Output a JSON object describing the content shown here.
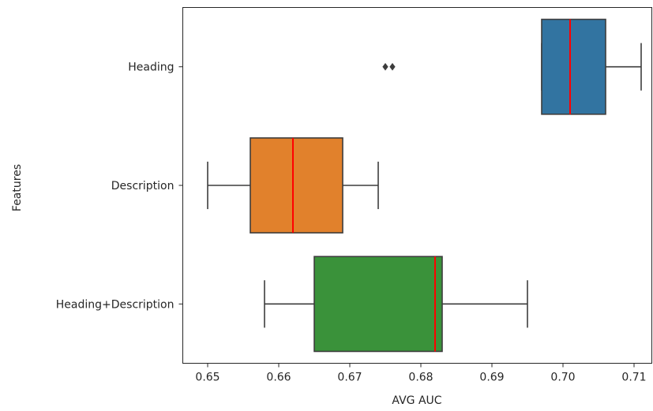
{
  "chart_data": {
    "type": "boxplot",
    "orientation": "horizontal",
    "title": "",
    "xlabel": "AVG AUC",
    "ylabel": "Features",
    "xlim": [
      0.6465,
      0.7125
    ],
    "x_ticks": [
      0.65,
      0.66,
      0.67,
      0.68,
      0.69,
      0.7,
      0.71
    ],
    "x_tick_labels": [
      "0.65",
      "0.66",
      "0.67",
      "0.68",
      "0.69",
      "0.70",
      "0.71"
    ],
    "grid": false,
    "median_color": "#ff0000",
    "series": [
      {
        "category": "Heading",
        "color": "#3274a1",
        "whisker_low": 0.697,
        "q1": 0.697,
        "median": 0.701,
        "q3": 0.706,
        "whisker_high": 0.711,
        "outliers": [
          0.675,
          0.676
        ]
      },
      {
        "category": "Description",
        "color": "#e1812c",
        "whisker_low": 0.65,
        "q1": 0.656,
        "median": 0.662,
        "q3": 0.669,
        "whisker_high": 0.674,
        "outliers": []
      },
      {
        "category": "Heading+Description",
        "color": "#3a923a",
        "whisker_low": 0.658,
        "q1": 0.665,
        "median": 0.682,
        "q3": 0.683,
        "whisker_high": 0.695,
        "outliers": []
      }
    ]
  }
}
